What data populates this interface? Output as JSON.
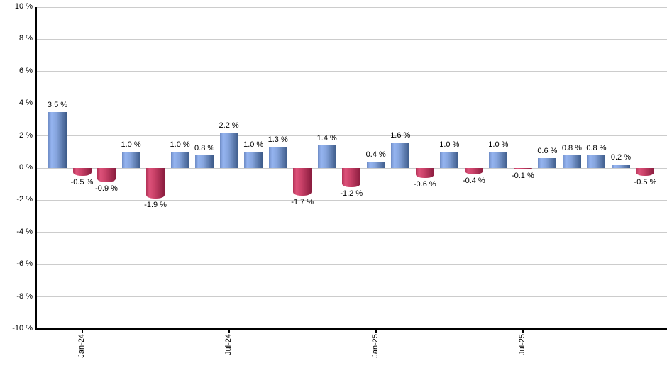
{
  "chart_data": {
    "type": "bar",
    "title": "",
    "xlabel": "",
    "ylabel": "",
    "ylim": [
      -10,
      10
    ],
    "grid": true,
    "legend": false,
    "values": [
      3.5,
      -0.5,
      -0.9,
      1.0,
      -1.9,
      1.0,
      0.8,
      2.2,
      1.0,
      1.3,
      -1.7,
      1.4,
      -1.2,
      0.4,
      1.6,
      -0.6,
      1.0,
      -0.4,
      1.0,
      -0.1,
      0.6,
      0.8,
      0.8,
      0.2,
      -0.5
    ],
    "value_labels": [
      "3.5 %",
      "-0.5 %",
      "-0.9 %",
      "1.0 %",
      "-1.9 %",
      "1.0 %",
      "0.8 %",
      "2.2 %",
      "1.0 %",
      "1.3 %",
      "-1.7 %",
      "1.4 %",
      "-1.2 %",
      "0.4 %",
      "1.6 %",
      "-0.6 %",
      "1.0 %",
      "-0.4 %",
      "1.0 %",
      "-0.1 %",
      "0.6 %",
      "0.8 %",
      "0.8 %",
      "0.2 %",
      "-0.5 %"
    ],
    "y_axis": {
      "tick_labels": [
        "10 %",
        "8 %",
        "6 %",
        "4 %",
        "2 %",
        "0 %",
        "-2 %",
        "-4 %",
        "-6 %",
        "-8 %",
        "-10 %"
      ],
      "tick_values": [
        10,
        8,
        6,
        4,
        2,
        0,
        -2,
        -4,
        -6,
        -8,
        -10
      ]
    },
    "x_axis": {
      "ticks": [
        {
          "label": "Jan-24",
          "bar_index": 1
        },
        {
          "label": "Jul-24",
          "bar_index": 7
        },
        {
          "label": "Jan-25",
          "bar_index": 13
        },
        {
          "label": "Jul-25",
          "bar_index": 19
        }
      ]
    },
    "colors": {
      "positive": {
        "edge": "#6E8CC6",
        "light": "#95B4F0",
        "mid": "#85A4DD",
        "dark": "#3C5A88"
      },
      "negative": {
        "edge": "#B23156",
        "light": "#DD527A",
        "mid": "#C94168",
        "dark": "#8A1C3E"
      },
      "grid": "#CCCCCC",
      "axis": "#000000",
      "text": "#000000"
    }
  }
}
